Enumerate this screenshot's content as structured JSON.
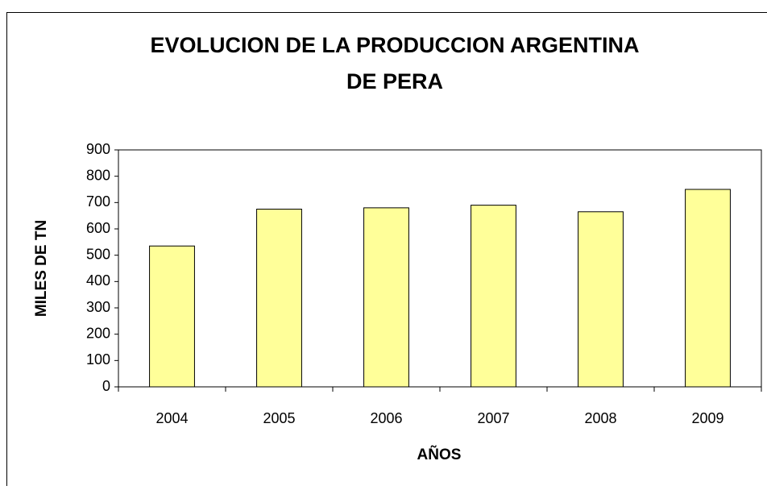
{
  "chart_data": {
    "type": "bar",
    "title": [
      "EVOLUCION DE LA PRODUCCION ARGENTINA",
      "DE PERA"
    ],
    "x_label": "AÑOS",
    "y_label": "MILES DE TN",
    "categories": [
      "2004",
      "2005",
      "2006",
      "2007",
      "2008",
      "2009"
    ],
    "values": [
      535,
      675,
      680,
      690,
      665,
      750
    ],
    "color": "#ffff99",
    "ylim": [
      0,
      900
    ],
    "yticks": [
      0,
      100,
      200,
      300,
      400,
      500,
      600,
      700,
      800,
      900
    ],
    "grid": false
  }
}
